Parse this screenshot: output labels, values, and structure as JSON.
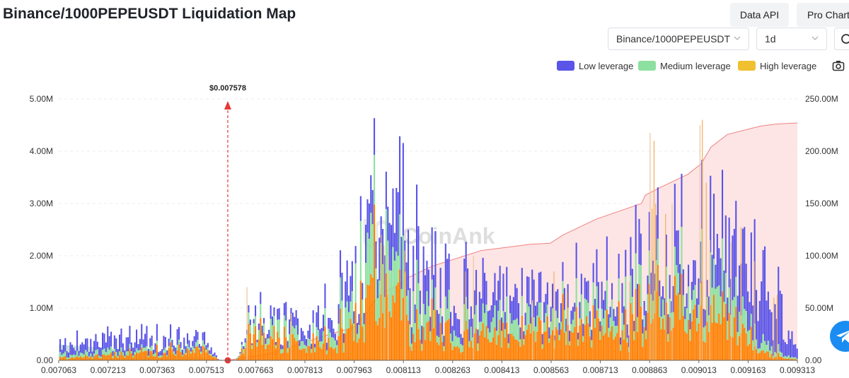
{
  "header": {
    "title": "Binance/1000PEPEUSDT Liquidation Map",
    "data_api_label": "Data API",
    "pro_chart_label": "Pro Chart"
  },
  "controls": {
    "symbol_value": "Binance/1000PEPEUSDT",
    "interval_value": "1d",
    "search_icon": "search-icon",
    "camera_icon": "camera-icon"
  },
  "legend": {
    "low": "Low leverage",
    "medium": "Medium leverage",
    "high": "High leverage"
  },
  "colors": {
    "low": "#5a54e8",
    "medium": "#8de0a0",
    "high": "#ff8000",
    "high_swatch": "#f0c030",
    "cumulative_fill": "#fde0e0",
    "cumulative_line": "#f08080",
    "short_cumulative_fill": "#b8d8c8",
    "marker": "#e53935"
  },
  "watermark": "CoinAnk",
  "chart_data": {
    "type": "bar",
    "title": "Binance/1000PEPEUSDT Liquidation Map",
    "current_price": {
      "value": 0.007578,
      "label": "$0.007578"
    },
    "x_ticks": [
      "0.007063",
      "0.007213",
      "0.007363",
      "0.007513",
      "0.007663",
      "0.007813",
      "0.007963",
      "0.008113",
      "0.008263",
      "0.008413",
      "0.008563",
      "0.008713",
      "0.008863",
      "0.009013",
      "0.009163",
      "0.009313"
    ],
    "x_range": [
      0.007063,
      0.009313
    ],
    "y_left_ticks": [
      "0.00",
      "1.00M",
      "2.00M",
      "3.00M",
      "4.00M",
      "5.00M"
    ],
    "y_left_range": [
      0,
      5000000
    ],
    "y_right_ticks": [
      "0.00",
      "50.00M",
      "100.00M",
      "150.00M",
      "200.00M",
      "250.00M"
    ],
    "y_right_range": [
      0,
      250000000
    ],
    "grid": true,
    "legend_position": "top-right",
    "series_profile": [
      {
        "name": "Low leverage",
        "x": [
          0.007063,
          0.0072,
          0.0075,
          0.00755,
          0.0076,
          0.00765,
          0.0078,
          0.0079,
          0.00795,
          0.00802,
          0.0081,
          0.00815,
          0.0082,
          0.0084,
          0.0086,
          0.0088,
          0.0089,
          0.009,
          0.0091,
          0.0092,
          0.00925,
          0.00928,
          0.009313
        ],
        "y": [
          150000,
          280000,
          150000,
          0,
          0,
          120000,
          250000,
          300000,
          450000,
          700000,
          950000,
          900000,
          700000,
          450000,
          350000,
          500000,
          650000,
          750000,
          950000,
          1100000,
          1000000,
          500000,
          100000
        ]
      },
      {
        "name": "Medium leverage",
        "x": [
          0.007063,
          0.0072,
          0.0075,
          0.00755,
          0.0076,
          0.00765,
          0.0078,
          0.0079,
          0.00795,
          0.00802,
          0.0081,
          0.00815,
          0.0082,
          0.0084,
          0.0086,
          0.0088,
          0.0089,
          0.009,
          0.0091,
          0.0092,
          0.00925,
          0.00928,
          0.009313
        ],
        "y": [
          50000,
          90000,
          60000,
          0,
          0,
          200000,
          180000,
          250000,
          500000,
          1100000,
          650000,
          500000,
          350000,
          300000,
          280000,
          400000,
          550000,
          650000,
          600000,
          200000,
          100000,
          50000,
          20000
        ]
      },
      {
        "name": "High leverage",
        "x": [
          0.007063,
          0.0072,
          0.0075,
          0.00755,
          0.0076,
          0.00765,
          0.0078,
          0.0079,
          0.00795,
          0.00802,
          0.0081,
          0.00815,
          0.0082,
          0.0084,
          0.0086,
          0.0088,
          0.0089,
          0.009,
          0.0091,
          0.0092,
          0.00925,
          0.00928,
          0.009313
        ],
        "y": [
          40000,
          120000,
          230000,
          0,
          0,
          500000,
          300000,
          420000,
          700000,
          1500000,
          900000,
          550000,
          600000,
          450000,
          650000,
          700000,
          1200000,
          1100000,
          750000,
          200000,
          80000,
          40000,
          10000
        ]
      }
    ],
    "spikes": [
      {
        "x": 0.008863,
        "y": 4350000
      },
      {
        "x": 0.008875,
        "y": 4200000
      },
      {
        "x": 0.008869,
        "y": 2900000
      },
      {
        "x": 0.009015,
        "y": 4500000
      },
      {
        "x": 0.009022,
        "y": 4600000
      },
      {
        "x": 0.009034,
        "y": 3400000
      },
      {
        "x": 0.009045,
        "y": 2300000
      },
      {
        "x": 0.008045,
        "y": 2400000
      },
      {
        "x": 0.008052,
        "y": 2200000
      },
      {
        "x": 0.008065,
        "y": 2000000
      },
      {
        "x": 0.008115,
        "y": 2100000
      },
      {
        "x": 0.008118,
        "y": 1700000
      },
      {
        "x": 0.008325,
        "y": 2000000
      },
      {
        "x": 0.0083,
        "y": 1700000
      },
      {
        "x": 0.00888,
        "y": 3000000
      },
      {
        "x": 0.00893,
        "y": 3000000
      },
      {
        "x": 0.00891,
        "y": 2800000
      },
      {
        "x": 0.00914,
        "y": 2550000
      },
      {
        "x": 0.00911,
        "y": 2250000
      },
      {
        "x": 0.00918,
        "y": 1900000
      },
      {
        "x": 0.00924,
        "y": 1200000
      },
      {
        "x": 0.007635,
        "y": 1400000
      },
      {
        "x": 0.00777,
        "y": 900000
      },
      {
        "x": 0.00857,
        "y": 1700000
      },
      {
        "x": 0.008505,
        "y": 1150000
      },
      {
        "x": 0.00925,
        "y": 1250000
      },
      {
        "x": 0.00861,
        "y": 1300000
      },
      {
        "x": 0.0088,
        "y": 1500000
      }
    ],
    "cumulative_long": {
      "x": [
        0.007578,
        0.0077,
        0.0078,
        0.0079,
        0.007965,
        0.008,
        0.00802,
        0.00805,
        0.0081,
        0.00812,
        0.0082,
        0.00835,
        0.0085,
        0.00856,
        0.0086,
        0.0087,
        0.008838,
        0.00885,
        0.0089,
        0.00898,
        0.00902,
        0.00905,
        0.0091,
        0.0092,
        0.00925,
        0.009313
      ],
      "y": [
        0,
        6000000,
        16000000,
        26000000,
        32000000,
        45000000,
        55000000,
        65000000,
        72000000,
        78000000,
        90000000,
        105000000,
        111000000,
        112000000,
        120000000,
        135000000,
        150000000,
        158000000,
        166000000,
        178000000,
        188000000,
        204000000,
        216000000,
        224000000,
        226000000,
        227000000
      ]
    },
    "cumulative_short": {
      "x": [
        0.007063,
        0.0072,
        0.0073,
        0.0074,
        0.0075,
        0.007578
      ],
      "y": [
        15000000,
        12000000,
        9000000,
        6000000,
        2500000,
        0
      ]
    }
  }
}
